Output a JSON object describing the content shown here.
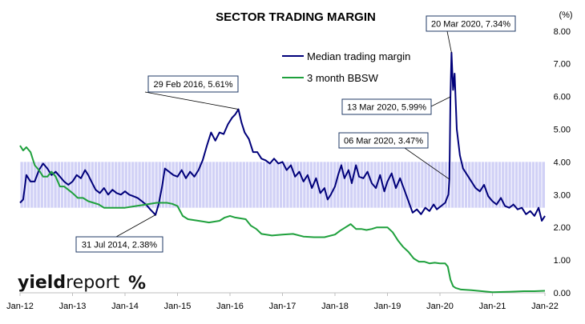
{
  "chart_data": {
    "type": "line",
    "title": "SECTOR TRADING MARGIN",
    "unit_label": "(%)",
    "xlabel": "",
    "ylabel": "",
    "x_ticks": [
      "Jan-12",
      "Jan-13",
      "Jan-14",
      "Jan-15",
      "Jan-16",
      "Jan-17",
      "Jan-18",
      "Jan-19",
      "Jan-20",
      "Jan-21",
      "Jan-22"
    ],
    "y_ticks": [
      "0.00",
      "1.00",
      "2.00",
      "3.00",
      "4.00",
      "5.00",
      "6.00",
      "7.00",
      "8.00"
    ],
    "ylim": [
      0,
      8.5
    ],
    "xlim": [
      2012.0,
      2022.0
    ],
    "y_axis_side": "right",
    "grid": false,
    "legend_position": "top-center",
    "band": {
      "from": 2.6,
      "to": 4.0,
      "color": "#c9c9f5"
    },
    "series": [
      {
        "name": "Median trading margin",
        "color": "#00007a",
        "points": [
          [
            2012.0,
            2.75
          ],
          [
            2012.06,
            2.85
          ],
          [
            2012.12,
            3.6
          ],
          [
            2012.2,
            3.4
          ],
          [
            2012.28,
            3.4
          ],
          [
            2012.36,
            3.75
          ],
          [
            2012.44,
            3.95
          ],
          [
            2012.52,
            3.8
          ],
          [
            2012.6,
            3.6
          ],
          [
            2012.68,
            3.7
          ],
          [
            2012.76,
            3.55
          ],
          [
            2012.84,
            3.4
          ],
          [
            2012.92,
            3.3
          ],
          [
            2013.0,
            3.4
          ],
          [
            2013.08,
            3.6
          ],
          [
            2013.16,
            3.5
          ],
          [
            2013.24,
            3.75
          ],
          [
            2013.3,
            3.6
          ],
          [
            2013.36,
            3.4
          ],
          [
            2013.44,
            3.15
          ],
          [
            2013.52,
            3.05
          ],
          [
            2013.6,
            3.2
          ],
          [
            2013.68,
            3.0
          ],
          [
            2013.76,
            3.15
          ],
          [
            2013.84,
            3.05
          ],
          [
            2013.92,
            3.0
          ],
          [
            2014.0,
            3.1
          ],
          [
            2014.08,
            3.0
          ],
          [
            2014.16,
            2.95
          ],
          [
            2014.24,
            2.9
          ],
          [
            2014.32,
            2.8
          ],
          [
            2014.4,
            2.7
          ],
          [
            2014.48,
            2.55
          ],
          [
            2014.54,
            2.45
          ],
          [
            2014.58,
            2.38
          ],
          [
            2014.64,
            2.7
          ],
          [
            2014.7,
            3.2
          ],
          [
            2014.76,
            3.8
          ],
          [
            2014.84,
            3.7
          ],
          [
            2014.92,
            3.6
          ],
          [
            2015.0,
            3.55
          ],
          [
            2015.08,
            3.75
          ],
          [
            2015.16,
            3.5
          ],
          [
            2015.24,
            3.7
          ],
          [
            2015.32,
            3.55
          ],
          [
            2015.4,
            3.75
          ],
          [
            2015.48,
            4.05
          ],
          [
            2015.56,
            4.5
          ],
          [
            2015.64,
            4.9
          ],
          [
            2015.72,
            4.65
          ],
          [
            2015.8,
            4.9
          ],
          [
            2015.88,
            4.85
          ],
          [
            2015.96,
            5.15
          ],
          [
            2016.04,
            5.35
          ],
          [
            2016.1,
            5.45
          ],
          [
            2016.16,
            5.61
          ],
          [
            2016.22,
            5.2
          ],
          [
            2016.28,
            4.9
          ],
          [
            2016.36,
            4.7
          ],
          [
            2016.44,
            4.3
          ],
          [
            2016.52,
            4.3
          ],
          [
            2016.6,
            4.1
          ],
          [
            2016.68,
            4.05
          ],
          [
            2016.76,
            3.95
          ],
          [
            2016.84,
            4.1
          ],
          [
            2016.92,
            3.95
          ],
          [
            2017.0,
            4.0
          ],
          [
            2017.08,
            3.75
          ],
          [
            2017.16,
            3.9
          ],
          [
            2017.24,
            3.55
          ],
          [
            2017.32,
            3.7
          ],
          [
            2017.4,
            3.4
          ],
          [
            2017.48,
            3.6
          ],
          [
            2017.56,
            3.2
          ],
          [
            2017.64,
            3.5
          ],
          [
            2017.72,
            3.05
          ],
          [
            2017.8,
            3.2
          ],
          [
            2017.86,
            2.85
          ],
          [
            2017.92,
            3.0
          ],
          [
            2018.0,
            3.25
          ],
          [
            2018.06,
            3.6
          ],
          [
            2018.12,
            3.9
          ],
          [
            2018.18,
            3.5
          ],
          [
            2018.26,
            3.75
          ],
          [
            2018.32,
            3.35
          ],
          [
            2018.4,
            3.9
          ],
          [
            2018.46,
            3.55
          ],
          [
            2018.54,
            3.5
          ],
          [
            2018.62,
            3.7
          ],
          [
            2018.7,
            3.35
          ],
          [
            2018.78,
            3.2
          ],
          [
            2018.86,
            3.6
          ],
          [
            2018.94,
            3.1
          ],
          [
            2019.0,
            3.4
          ],
          [
            2019.08,
            3.65
          ],
          [
            2019.16,
            3.2
          ],
          [
            2019.24,
            3.5
          ],
          [
            2019.32,
            3.15
          ],
          [
            2019.4,
            2.8
          ],
          [
            2019.48,
            2.45
          ],
          [
            2019.56,
            2.55
          ],
          [
            2019.64,
            2.4
          ],
          [
            2019.72,
            2.6
          ],
          [
            2019.8,
            2.5
          ],
          [
            2019.88,
            2.7
          ],
          [
            2019.94,
            2.55
          ],
          [
            2020.02,
            2.65
          ],
          [
            2020.1,
            2.75
          ],
          [
            2020.16,
            3.0
          ],
          [
            2020.18,
            3.47
          ],
          [
            2020.2,
            5.99
          ],
          [
            2020.22,
            7.34
          ],
          [
            2020.25,
            6.2
          ],
          [
            2020.28,
            6.7
          ],
          [
            2020.32,
            5.0
          ],
          [
            2020.38,
            4.2
          ],
          [
            2020.44,
            3.8
          ],
          [
            2020.52,
            3.6
          ],
          [
            2020.6,
            3.4
          ],
          [
            2020.68,
            3.2
          ],
          [
            2020.76,
            3.1
          ],
          [
            2020.84,
            3.3
          ],
          [
            2020.92,
            2.95
          ],
          [
            2021.0,
            2.8
          ],
          [
            2021.08,
            2.7
          ],
          [
            2021.16,
            2.9
          ],
          [
            2021.24,
            2.65
          ],
          [
            2021.32,
            2.6
          ],
          [
            2021.4,
            2.7
          ],
          [
            2021.48,
            2.55
          ],
          [
            2021.56,
            2.6
          ],
          [
            2021.64,
            2.4
          ],
          [
            2021.72,
            2.5
          ],
          [
            2021.8,
            2.35
          ],
          [
            2021.88,
            2.6
          ],
          [
            2021.94,
            2.2
          ],
          [
            2022.0,
            2.35
          ]
        ]
      },
      {
        "name": "3 month BBSW",
        "color": "#1ea03c",
        "points": [
          [
            2012.0,
            4.5
          ],
          [
            2012.06,
            4.35
          ],
          [
            2012.12,
            4.45
          ],
          [
            2012.2,
            4.3
          ],
          [
            2012.28,
            3.9
          ],
          [
            2012.36,
            3.75
          ],
          [
            2012.44,
            3.55
          ],
          [
            2012.52,
            3.55
          ],
          [
            2012.6,
            3.7
          ],
          [
            2012.68,
            3.55
          ],
          [
            2012.76,
            3.25
          ],
          [
            2012.84,
            3.25
          ],
          [
            2012.92,
            3.15
          ],
          [
            2013.0,
            3.05
          ],
          [
            2013.1,
            2.9
          ],
          [
            2013.2,
            2.9
          ],
          [
            2013.3,
            2.8
          ],
          [
            2013.4,
            2.75
          ],
          [
            2013.5,
            2.7
          ],
          [
            2013.6,
            2.6
          ],
          [
            2013.7,
            2.6
          ],
          [
            2013.8,
            2.6
          ],
          [
            2013.9,
            2.6
          ],
          [
            2014.0,
            2.6
          ],
          [
            2014.2,
            2.65
          ],
          [
            2014.4,
            2.7
          ],
          [
            2014.6,
            2.75
          ],
          [
            2014.8,
            2.75
          ],
          [
            2014.9,
            2.72
          ],
          [
            2015.0,
            2.65
          ],
          [
            2015.1,
            2.35
          ],
          [
            2015.2,
            2.25
          ],
          [
            2015.4,
            2.2
          ],
          [
            2015.6,
            2.15
          ],
          [
            2015.8,
            2.2
          ],
          [
            2015.9,
            2.3
          ],
          [
            2016.0,
            2.35
          ],
          [
            2016.1,
            2.3
          ],
          [
            2016.3,
            2.25
          ],
          [
            2016.4,
            2.05
          ],
          [
            2016.5,
            1.95
          ],
          [
            2016.6,
            1.8
          ],
          [
            2016.8,
            1.75
          ],
          [
            2017.0,
            1.78
          ],
          [
            2017.2,
            1.8
          ],
          [
            2017.4,
            1.72
          ],
          [
            2017.6,
            1.7
          ],
          [
            2017.8,
            1.7
          ],
          [
            2018.0,
            1.78
          ],
          [
            2018.1,
            1.9
          ],
          [
            2018.2,
            2.0
          ],
          [
            2018.3,
            2.1
          ],
          [
            2018.4,
            1.95
          ],
          [
            2018.5,
            1.95
          ],
          [
            2018.6,
            1.92
          ],
          [
            2018.7,
            1.95
          ],
          [
            2018.8,
            2.0
          ],
          [
            2018.9,
            2.0
          ],
          [
            2019.0,
            2.0
          ],
          [
            2019.1,
            1.85
          ],
          [
            2019.2,
            1.6
          ],
          [
            2019.3,
            1.4
          ],
          [
            2019.4,
            1.25
          ],
          [
            2019.5,
            1.05
          ],
          [
            2019.6,
            0.95
          ],
          [
            2019.7,
            0.95
          ],
          [
            2019.8,
            0.9
          ],
          [
            2019.9,
            0.92
          ],
          [
            2020.0,
            0.9
          ],
          [
            2020.1,
            0.9
          ],
          [
            2020.15,
            0.8
          ],
          [
            2020.2,
            0.4
          ],
          [
            2020.25,
            0.2
          ],
          [
            2020.3,
            0.15
          ],
          [
            2020.4,
            0.1
          ],
          [
            2020.6,
            0.08
          ],
          [
            2020.8,
            0.05
          ],
          [
            2021.0,
            0.02
          ],
          [
            2021.3,
            0.03
          ],
          [
            2021.6,
            0.05
          ],
          [
            2021.8,
            0.05
          ],
          [
            2022.0,
            0.06
          ]
        ]
      }
    ],
    "annotations": [
      {
        "text": "29 Feb 2016, 5.61%",
        "x": 2016.16,
        "y": 5.61
      },
      {
        "text": "31 Jul 2014, 2.38%",
        "x": 2014.58,
        "y": 2.38
      },
      {
        "text": "20 Mar 2020, 7.34%",
        "x": 2020.22,
        "y": 7.34
      },
      {
        "text": "13 Mar 2020, 5.99%",
        "x": 2020.2,
        "y": 5.99
      },
      {
        "text": "06 Mar 2020, 3.47%",
        "x": 2020.18,
        "y": 3.47
      }
    ]
  },
  "brand": {
    "name_bold": "yield",
    "name_thin": "report",
    "logo_mark": "%",
    "logo_colors": [
      "#1ea03c",
      "#c00000"
    ]
  }
}
